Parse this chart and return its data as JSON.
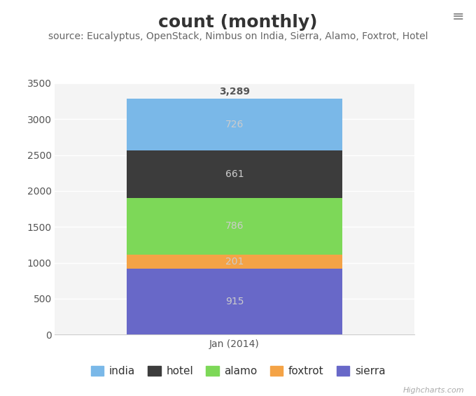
{
  "title": "count (monthly)",
  "subtitle": "source: Eucalyptus, OpenStack, Nimbus on India, Sierra, Alamo, Foxtrot, Hotel",
  "xlabel": "Jan (2014)",
  "series": [
    {
      "name": "sierra",
      "value": 915,
      "color": "#6868c8"
    },
    {
      "name": "foxtrot",
      "value": 201,
      "color": "#f4a346"
    },
    {
      "name": "alamo",
      "value": 786,
      "color": "#7dd858"
    },
    {
      "name": "hotel",
      "value": 661,
      "color": "#3c3c3c"
    },
    {
      "name": "india",
      "value": 726,
      "color": "#7ab8e8"
    }
  ],
  "legend_order": [
    "india",
    "hotel",
    "alamo",
    "foxtrot",
    "sierra"
  ],
  "legend_colors": {
    "india": "#7ab8e8",
    "hotel": "#3c3c3c",
    "alamo": "#7dd858",
    "foxtrot": "#f4a346",
    "sierra": "#6868c8"
  },
  "total_label": "3,289",
  "ylim": [
    0,
    3500
  ],
  "yticks": [
    0,
    500,
    1000,
    1500,
    2000,
    2500,
    3000,
    3500
  ],
  "bg_color": "#ffffff",
  "plot_bg_color": "#f4f4f4",
  "grid_color": "#ffffff",
  "title_fontsize": 18,
  "subtitle_fontsize": 10,
  "tick_fontsize": 10,
  "label_fontsize": 10,
  "legend_fontsize": 11,
  "highcharts_text": "Highcharts.com",
  "menu_color": "#888888",
  "total_color": "#555555",
  "segment_label_color": "#cccccc"
}
